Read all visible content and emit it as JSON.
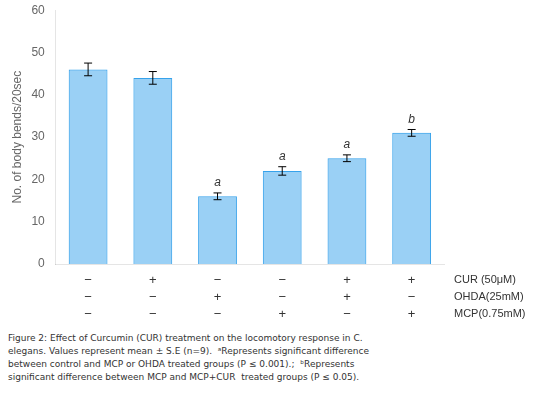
{
  "chart_data": {
    "type": "bar",
    "categories": [
      null,
      null,
      null,
      null,
      null,
      null
    ],
    "values": [
      46,
      44,
      16,
      22,
      25,
      31
    ],
    "errors": [
      1.5,
      1.5,
      0.8,
      1.0,
      0.8,
      0.8
    ],
    "ylabel": "No. of body bends/20sec",
    "ylim": [
      0,
      60
    ],
    "yticks": [
      0,
      10,
      20,
      30,
      40,
      50,
      60
    ],
    "grid": false,
    "tick_labels": "y",
    "annotations": [
      null,
      null,
      "a",
      "a",
      "a",
      "b"
    ],
    "table": {
      "row_labels": [
        "CUR (50μM)",
        "OHDA(25mM)",
        "MCP(0.75mM)"
      ],
      "rows": [
        [
          "−",
          "+",
          "−",
          "−",
          "+",
          "+"
        ],
        [
          "−",
          "−",
          "+",
          "−",
          "+",
          "−"
        ],
        [
          "−",
          "−",
          "−",
          "+",
          "−",
          "+"
        ]
      ]
    },
    "caption": [
      "Figure 2: Effect of Curcumin (CUR) treatment on the locomotory response in C.",
      "elegans. Values represent mean ± S.E (n=9).  ᵃRepresents significant difference",
      "between control and MCP or OHDA treated groups (P ≤ 0.001).;  ᵇRepresents",
      "significant difference between MCP and MCP+CUR  treated groups (P ≤ 0.05)."
    ]
  }
}
